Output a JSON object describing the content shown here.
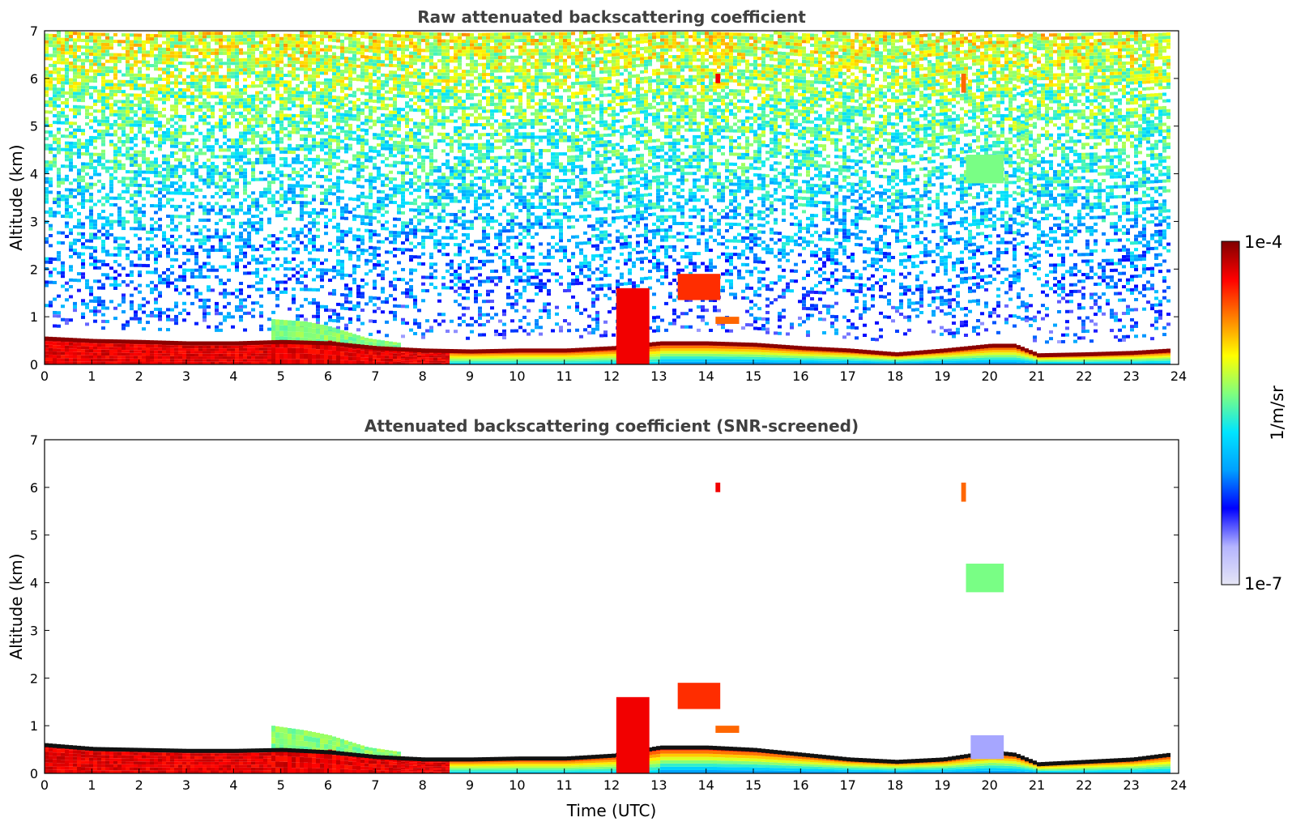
{
  "chart_data": [
    {
      "type": "heatmap",
      "title": "Raw attenuated backscattering coefficient",
      "xlabel": "",
      "ylabel": "Altitude (km)",
      "xlim": [
        0,
        24
      ],
      "ylim": [
        0,
        7
      ],
      "x_ticks": [
        "0",
        "1",
        "2",
        "3",
        "4",
        "5",
        "6",
        "7",
        "8",
        "9",
        "10",
        "11",
        "12",
        "13",
        "14",
        "15",
        "16",
        "17",
        "18",
        "19",
        "20",
        "21",
        "22",
        "23",
        "24"
      ],
      "y_ticks": [
        "0",
        "1",
        "2",
        "3",
        "4",
        "5",
        "6",
        "7"
      ],
      "boundary_layer_top_km": [
        [
          0,
          0.55
        ],
        [
          1,
          0.5
        ],
        [
          2,
          0.48
        ],
        [
          3,
          0.45
        ],
        [
          4,
          0.45
        ],
        [
          5,
          0.48
        ],
        [
          6,
          0.45
        ],
        [
          7,
          0.35
        ],
        [
          8,
          0.3
        ],
        [
          9,
          0.28
        ],
        [
          10,
          0.3
        ],
        [
          11,
          0.3
        ],
        [
          12,
          0.35
        ],
        [
          13,
          0.45
        ],
        [
          14,
          0.45
        ],
        [
          15,
          0.42
        ],
        [
          16,
          0.35
        ],
        [
          17,
          0.3
        ],
        [
          18,
          0.22
        ],
        [
          19,
          0.3
        ],
        [
          20,
          0.4
        ],
        [
          20.5,
          0.4
        ],
        [
          21,
          0.2
        ],
        [
          22,
          0.22
        ],
        [
          23,
          0.25
        ],
        [
          23.8,
          0.3
        ]
      ],
      "residual_layer_km": [
        [
          4.8,
          0.95
        ],
        [
          5.5,
          0.9
        ],
        [
          6,
          0.8
        ],
        [
          6.8,
          0.55
        ],
        [
          7.5,
          0.45
        ]
      ],
      "cloud_features": [
        {
          "t_start": 12.1,
          "t_end": 12.8,
          "alt_base": 0.0,
          "alt_top": 1.6,
          "level": 0.9
        },
        {
          "t_start": 13.4,
          "t_end": 14.3,
          "alt_base": 1.35,
          "alt_top": 1.9,
          "level": 0.85
        },
        {
          "t_start": 14.2,
          "t_end": 14.7,
          "alt_base": 0.85,
          "alt_top": 1.0,
          "level": 0.8
        },
        {
          "t_start": 14.2,
          "t_end": 14.3,
          "alt_base": 5.9,
          "alt_top": 6.1,
          "level": 0.9
        },
        {
          "t_start": 19.4,
          "t_end": 19.5,
          "alt_base": 5.7,
          "alt_top": 6.1,
          "level": 0.8
        },
        {
          "t_start": 19.5,
          "t_end": 20.3,
          "alt_base": 3.8,
          "alt_top": 4.4,
          "level": 0.55
        }
      ]
    },
    {
      "type": "heatmap",
      "title": "Attenuated backscattering coefficient (SNR-screened)",
      "xlabel": "Time (UTC)",
      "ylabel": "Altitude (km)",
      "xlim": [
        0,
        24
      ],
      "ylim": [
        0,
        7
      ],
      "x_ticks": [
        "0",
        "1",
        "2",
        "3",
        "4",
        "5",
        "6",
        "7",
        "8",
        "9",
        "10",
        "11",
        "12",
        "13",
        "14",
        "15",
        "16",
        "17",
        "18",
        "19",
        "20",
        "21",
        "22",
        "23",
        "24"
      ],
      "y_ticks": [
        "0",
        "1",
        "2",
        "3",
        "4",
        "5",
        "6",
        "7"
      ],
      "boundary_layer_top_km": [
        [
          0,
          0.6
        ],
        [
          1,
          0.52
        ],
        [
          2,
          0.5
        ],
        [
          3,
          0.48
        ],
        [
          4,
          0.48
        ],
        [
          5,
          0.5
        ],
        [
          6,
          0.45
        ],
        [
          7,
          0.35
        ],
        [
          8,
          0.3
        ],
        [
          9,
          0.3
        ],
        [
          10,
          0.32
        ],
        [
          11,
          0.32
        ],
        [
          12,
          0.38
        ],
        [
          13,
          0.55
        ],
        [
          14,
          0.55
        ],
        [
          15,
          0.5
        ],
        [
          16,
          0.4
        ],
        [
          17,
          0.3
        ],
        [
          18,
          0.25
        ],
        [
          19,
          0.3
        ],
        [
          20,
          0.45
        ],
        [
          20.5,
          0.4
        ],
        [
          21,
          0.2
        ],
        [
          22,
          0.25
        ],
        [
          23,
          0.3
        ],
        [
          23.8,
          0.4
        ]
      ],
      "residual_layer_km": [
        [
          4.8,
          1.0
        ],
        [
          5.5,
          0.9
        ],
        [
          6,
          0.8
        ],
        [
          6.8,
          0.55
        ],
        [
          7.5,
          0.45
        ]
      ],
      "cloud_features": [
        {
          "t_start": 12.1,
          "t_end": 12.8,
          "alt_base": 0.0,
          "alt_top": 1.6,
          "level": 0.9
        },
        {
          "t_start": 13.4,
          "t_end": 14.3,
          "alt_base": 1.35,
          "alt_top": 1.9,
          "level": 0.85
        },
        {
          "t_start": 14.2,
          "t_end": 14.7,
          "alt_base": 0.85,
          "alt_top": 1.0,
          "level": 0.8
        },
        {
          "t_start": 14.2,
          "t_end": 14.3,
          "alt_base": 5.9,
          "alt_top": 6.1,
          "level": 0.9
        },
        {
          "t_start": 19.4,
          "t_end": 19.5,
          "alt_base": 5.7,
          "alt_top": 6.1,
          "level": 0.8
        },
        {
          "t_start": 19.5,
          "t_end": 20.3,
          "alt_base": 3.8,
          "alt_top": 4.4,
          "level": 0.55
        },
        {
          "t_start": 19.6,
          "t_end": 20.3,
          "alt_base": 0.3,
          "alt_top": 0.8,
          "level": 0.12
        }
      ]
    }
  ],
  "colorbar": {
    "label": "1/m/sr",
    "max_label": "1e-4",
    "min_label": "1e-7",
    "colormap": "jet",
    "stops": [
      "#e6e6f5",
      "#b4b4ff",
      "#0000ff",
      "#00a0ff",
      "#00e5ff",
      "#7fff7f",
      "#ffff00",
      "#ff8000",
      "#ff0000",
      "#800000"
    ]
  },
  "colors": {
    "frame": "#000000",
    "title": "#404040",
    "background": "#ffffff"
  }
}
